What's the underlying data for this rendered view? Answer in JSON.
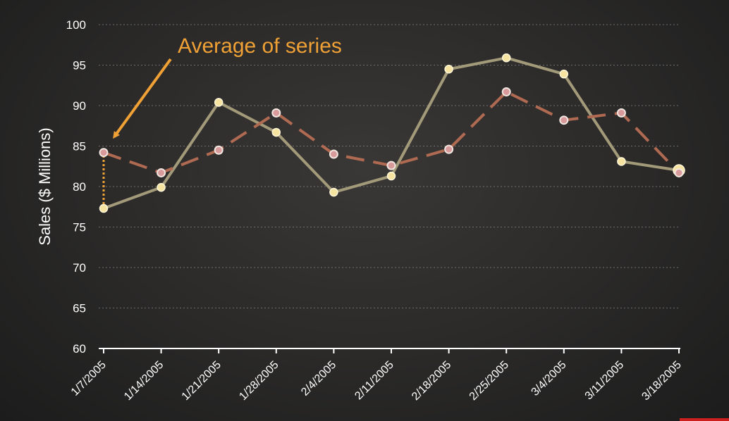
{
  "chart_data": {
    "type": "line",
    "ylabel": "Sales  ($ Millions)",
    "ylim": [
      60,
      100
    ],
    "yticks": [
      60,
      65,
      70,
      75,
      80,
      85,
      90,
      95,
      100
    ],
    "grid": true,
    "categories": [
      "1/7/2005",
      "1/14/2005",
      "1/21/2005",
      "1/28/2005",
      "2/4/2005",
      "2/11/2005",
      "2/18/2005",
      "2/25/2005",
      "3/4/2005",
      "3/11/2005",
      "3/18/2005"
    ],
    "series": [
      {
        "values": [
          77.3,
          79.9,
          90.4,
          86.7,
          79.3,
          81.3,
          94.5,
          95.9,
          93.9,
          83.1,
          82.0
        ],
        "color": "#a39a7a",
        "marker_color": "#f6e3a0",
        "style": "solid"
      },
      {
        "values": [
          84.2,
          81.7,
          84.5,
          89.1,
          84.0,
          82.6,
          84.6,
          91.7,
          88.2,
          89.1,
          81.7
        ],
        "color": "#b06a52",
        "marker_color": "#d89a9a",
        "style": "dashed"
      }
    ],
    "annotations": [
      {
        "text": "Average of series",
        "color": "#f0a135",
        "points_to_category": "1/7/2005"
      }
    ]
  }
}
